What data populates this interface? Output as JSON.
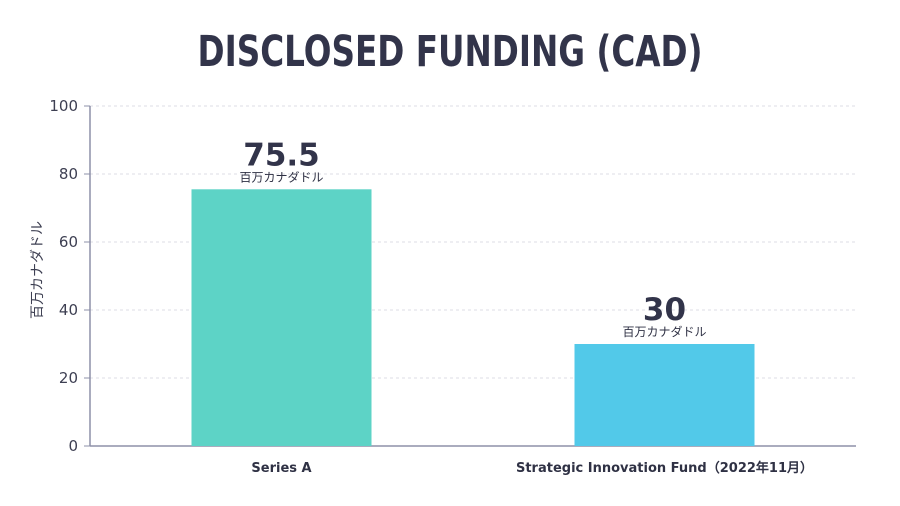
{
  "chart_data": {
    "type": "bar",
    "title": "DISCLOSED FUNDING (CAD)",
    "xlabel": "",
    "ylabel": "百万カナダドル",
    "ylim": [
      0,
      100
    ],
    "yticks": [
      0,
      20,
      40,
      60,
      80,
      100
    ],
    "grid": true,
    "categories": [
      "Series A",
      "Strategic Innovation Fund（2022年11月）"
    ],
    "values": [
      75.5,
      30
    ],
    "value_labels": [
      "75.5",
      "30"
    ],
    "unit_label": "百万カナダドル",
    "colors": [
      "#5dd3c6",
      "#52c9e9"
    ],
    "axis_color": "#8d90a8",
    "grid_color": "#dcdde6"
  }
}
